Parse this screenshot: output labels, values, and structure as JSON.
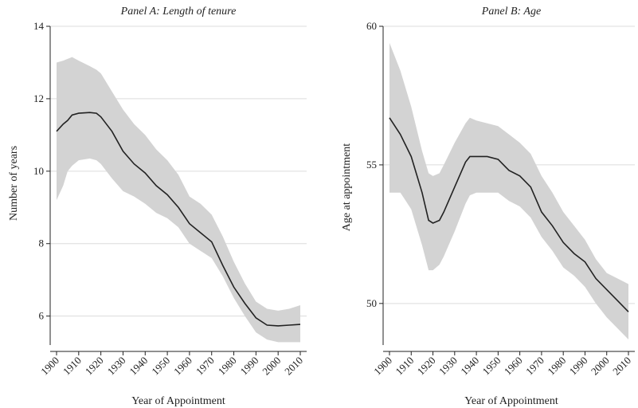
{
  "chart_data": [
    {
      "type": "line",
      "title": "Panel A: Length of tenure",
      "xlabel": "Year of Appointment",
      "ylabel": "Number of years",
      "xlim": [
        1900,
        2010
      ],
      "ylim": [
        5.2,
        14
      ],
      "xticks": [
        1900,
        1910,
        1920,
        1930,
        1940,
        1950,
        1960,
        1970,
        1980,
        1990,
        2000,
        2010
      ],
      "yticks": [
        6,
        8,
        10,
        12,
        14
      ],
      "grid": true,
      "band_color": "#d3d3d3",
      "line_color": "#222222",
      "x": [
        1900,
        1903,
        1905,
        1907,
        1910,
        1915,
        1918,
        1920,
        1925,
        1930,
        1935,
        1940,
        1945,
        1950,
        1955,
        1960,
        1965,
        1970,
        1975,
        1980,
        1985,
        1990,
        1995,
        2000,
        2005,
        2010
      ],
      "series": [
        {
          "values": [
            11.1,
            11.3,
            11.4,
            11.55,
            11.6,
            11.62,
            11.6,
            11.5,
            11.1,
            10.55,
            10.2,
            9.95,
            9.6,
            9.35,
            9.0,
            8.55,
            8.3,
            8.05,
            7.4,
            6.8,
            6.35,
            5.95,
            5.75,
            5.73,
            5.75,
            5.77
          ]
        }
      ],
      "band_upper": [
        13.0,
        13.05,
        13.1,
        13.15,
        13.05,
        12.9,
        12.8,
        12.7,
        12.2,
        11.7,
        11.3,
        11.0,
        10.6,
        10.3,
        9.9,
        9.3,
        9.1,
        8.8,
        8.2,
        7.5,
        6.9,
        6.4,
        6.2,
        6.15,
        6.2,
        6.3
      ],
      "band_lower": [
        9.2,
        9.6,
        10.0,
        10.15,
        10.3,
        10.35,
        10.3,
        10.2,
        9.8,
        9.45,
        9.3,
        9.1,
        8.85,
        8.7,
        8.45,
        8.0,
        7.8,
        7.6,
        7.1,
        6.5,
        6.0,
        5.55,
        5.35,
        5.28,
        5.28,
        5.28
      ]
    },
    {
      "type": "line",
      "title": "Panel B: Age",
      "xlabel": "Year of Appointment",
      "ylabel": "Age at appointment",
      "xlim": [
        1900,
        2010
      ],
      "ylim": [
        48.5,
        60
      ],
      "xticks": [
        1900,
        1910,
        1920,
        1930,
        1940,
        1950,
        1960,
        1970,
        1980,
        1990,
        2000,
        2010
      ],
      "yticks": [
        50,
        55,
        60
      ],
      "grid": true,
      "band_color": "#d3d3d3",
      "line_color": "#222222",
      "x": [
        1900,
        1905,
        1910,
        1915,
        1918,
        1920,
        1923,
        1925,
        1930,
        1935,
        1937,
        1940,
        1945,
        1950,
        1955,
        1960,
        1965,
        1970,
        1975,
        1980,
        1985,
        1990,
        1995,
        2000,
        2005,
        2010
      ],
      "series": [
        {
          "values": [
            56.7,
            56.1,
            55.3,
            54.0,
            53.0,
            52.9,
            53.0,
            53.3,
            54.2,
            55.1,
            55.3,
            55.3,
            55.3,
            55.2,
            54.8,
            54.6,
            54.2,
            53.3,
            52.8,
            52.2,
            51.8,
            51.5,
            50.9,
            50.5,
            50.1,
            49.7
          ]
        }
      ],
      "band_upper": [
        59.4,
        58.4,
        57.1,
        55.5,
        54.7,
        54.6,
        54.7,
        55.0,
        55.8,
        56.5,
        56.7,
        56.6,
        56.5,
        56.4,
        56.1,
        55.8,
        55.4,
        54.6,
        54.0,
        53.3,
        52.8,
        52.3,
        51.6,
        51.1,
        50.9,
        50.7
      ],
      "band_lower": [
        54.0,
        54.0,
        53.4,
        52.1,
        51.2,
        51.2,
        51.4,
        51.7,
        52.6,
        53.6,
        53.9,
        54.0,
        54.0,
        54.0,
        53.7,
        53.5,
        53.1,
        52.4,
        51.9,
        51.3,
        51.0,
        50.6,
        50.0,
        49.5,
        49.1,
        48.7
      ]
    }
  ]
}
